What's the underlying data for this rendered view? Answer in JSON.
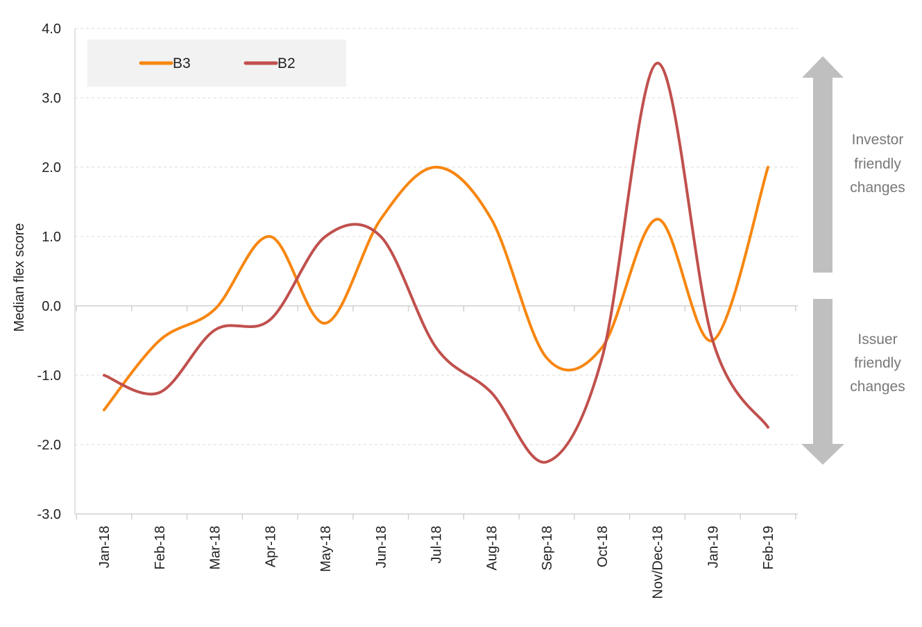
{
  "chart_data": {
    "type": "line",
    "ylabel": "Median flex score",
    "xlabel": "",
    "ylim": [
      -3.0,
      4.0
    ],
    "yticks": [
      "4.0",
      "3.0",
      "2.0",
      "1.0",
      "0.0",
      "-1.0",
      "-2.0",
      "-3.0"
    ],
    "ytick_values": [
      4,
      3,
      2,
      1,
      0,
      -1,
      -2,
      -3
    ],
    "categories": [
      "Jan-18",
      "Feb-18",
      "Mar-18",
      "Apr-18",
      "May-18",
      "Jun-18",
      "Jul-18",
      "Aug-18",
      "Sep-18",
      "Oct-18",
      "Nov/Dec-18",
      "Jan-19",
      "Feb-19"
    ],
    "series": [
      {
        "name": "B3",
        "color": "#F7860F",
        "values": [
          -1.5,
          -0.5,
          -0.05,
          1.0,
          -0.25,
          1.25,
          2.0,
          1.25,
          -0.75,
          -0.6,
          1.25,
          -0.5,
          2.0
        ]
      },
      {
        "name": "B2",
        "color": "#C0504D",
        "values": [
          -1.0,
          -1.25,
          -0.35,
          -0.2,
          1.0,
          1.0,
          -0.6,
          -1.25,
          -2.25,
          -0.75,
          3.5,
          -0.5,
          -1.75
        ]
      }
    ],
    "grid": "horizontal-dashed",
    "legend_position": "top-left",
    "annotations": {
      "up": [
        "Investor",
        "friendly",
        "changes"
      ],
      "down": [
        "Issuer",
        "friendly",
        "changes"
      ]
    }
  }
}
